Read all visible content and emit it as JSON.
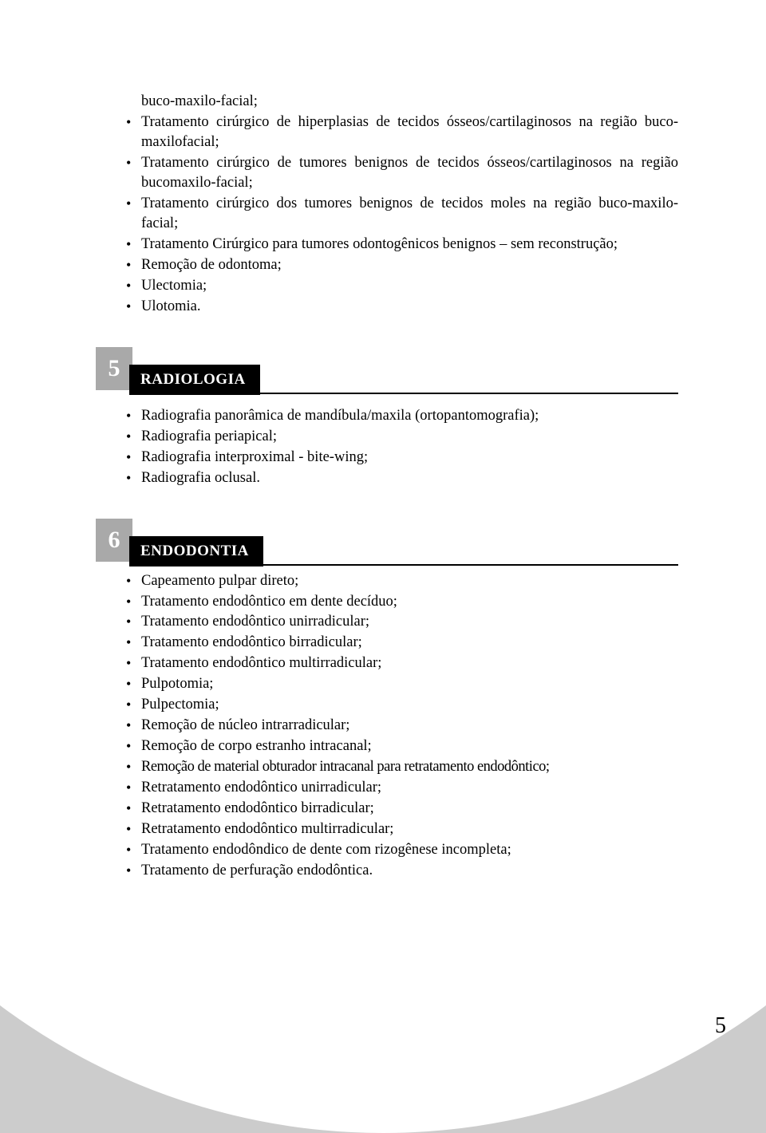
{
  "page_number": "5",
  "sections": [
    {
      "intro": "buco-maxilo-facial;",
      "items": [
        "Tratamento cirúrgico de hiperplasias de tecidos ósseos/cartilaginosos na região buco-maxilofacial;",
        "Tratamento cirúrgico de tumores benignos de tecidos ósseos/cartilaginosos na região bucomaxilo-facial;",
        "Tratamento cirúrgico dos tumores benignos de tecidos moles na região buco-maxilo-facial;",
        "Tratamento Cirúrgico para tumores odontogênicos benignos – sem reconstrução;",
        "Remoção de odontoma;",
        "Ulectomia;",
        "Ulotomia."
      ]
    },
    {
      "number": "5",
      "title": "RADIOLOGIA",
      "items": [
        "Radiografia panorâmica de mandíbula/maxila (ortopantomografia);",
        "Radiografia periapical;",
        "Radiografia interproximal - bite-wing;",
        "Radiografia oclusal."
      ]
    },
    {
      "number": "6",
      "title": "ENDODONTIA",
      "items": [
        "Capeamento pulpar direto;",
        "Tratamento endodôntico em dente decíduo;",
        "Tratamento endodôntico unirradicular;",
        "Tratamento endodôntico birradicular;",
        "Tratamento endodôntico multirradicular;",
        "Pulpotomia;",
        "Pulpectomia;",
        "Remoção de núcleo intrarradicular;",
        "Remoção de corpo estranho intracanal;",
        "Remoção de material obturador intracanal para retratamento endodôntico;",
        "Retratamento endodôntico unirradicular;",
        "Retratamento endodôntico birradicular;",
        "Retratamento endodôntico multirradicular;",
        "Tratamento endodôndico de dente com rizogênese incompleta;",
        "Tratamento de perfuração endodôntica."
      ]
    }
  ]
}
